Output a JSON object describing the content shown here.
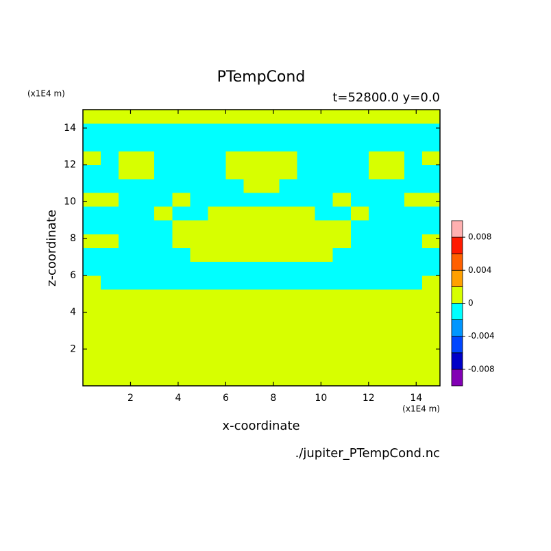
{
  "chart_data": {
    "type": "contour",
    "title": "PTempCond",
    "subtitle": "t=52800.0 y=0.0",
    "x_label": "x-coordinate",
    "y_label": "z-coordinate",
    "x_unit": "(x1E4 m)",
    "y_unit": "(x1E4 m)",
    "source": "./jupiter_PTempCond.nc",
    "xlim": [
      0,
      15
    ],
    "ylim": [
      0,
      15
    ],
    "xticks": [
      2,
      4,
      6,
      8,
      10,
      12,
      14
    ],
    "yticks": [
      2,
      4,
      6,
      8,
      10,
      12,
      14
    ],
    "levels": [
      -0.01,
      -0.008,
      -0.006,
      -0.004,
      -0.002,
      0,
      0.002,
      0.004,
      0.006,
      0.008,
      0.01
    ],
    "colors": [
      "#8200b4",
      "#0000c8",
      "#0046ff",
      "#0096ff",
      "#00ffff",
      "#d7ff00",
      "#ffa000",
      "#ff6000",
      "#ff1a00",
      "#ffb0b0"
    ],
    "colorbar_ticks": [
      -0.008,
      -0.004,
      0,
      0.004,
      0.008
    ],
    "z": [
      [
        0.001,
        0.001,
        0.001,
        0.001,
        0.001,
        0.001,
        0.001,
        0.001,
        0.001,
        0.001,
        0.001,
        0.001,
        0.001,
        0.001,
        0.001,
        0.001,
        0.001,
        0.001,
        0.001,
        0.001
      ],
      [
        0.001,
        0.001,
        0.001,
        0.001,
        0.001,
        0.001,
        0.001,
        0.001,
        0.001,
        0.001,
        0.001,
        0.001,
        0.001,
        0.001,
        0.001,
        0.001,
        0.001,
        0.001,
        0.001,
        0.001
      ],
      [
        0.001,
        0.001,
        0.001,
        0.001,
        0.001,
        0.001,
        0.001,
        0.001,
        0.001,
        0.001,
        0.001,
        0.001,
        0.001,
        0.001,
        0.001,
        0.001,
        0.001,
        0.001,
        0.001,
        0.001
      ],
      [
        0.001,
        0.001,
        0.001,
        0.001,
        0.001,
        0.001,
        0.001,
        0.001,
        0.001,
        0.001,
        0.001,
        0.001,
        0.001,
        0.001,
        0.001,
        0.001,
        0.001,
        0.001,
        0.001,
        0.001
      ],
      [
        0.001,
        0.001,
        0.001,
        0.001,
        0.001,
        0.001,
        0.001,
        0.001,
        0.001,
        0.001,
        0.001,
        0.001,
        0.001,
        0.001,
        0.001,
        0.001,
        0.001,
        0.001,
        0.001,
        0.001
      ],
      [
        0.001,
        0.001,
        0.001,
        0.001,
        0.001,
        0.001,
        0.001,
        0.001,
        0.001,
        0.001,
        0.001,
        0.001,
        0.001,
        0.001,
        0.001,
        0.001,
        0.001,
        0.001,
        0.001,
        0.001
      ],
      [
        0.001,
        0.001,
        0.001,
        0.001,
        0.001,
        0.001,
        0.001,
        0.001,
        0.001,
        0.001,
        0.001,
        0.001,
        0.001,
        0.001,
        0.001,
        0.001,
        0.001,
        0.001,
        0.001,
        0.001
      ],
      [
        0.001,
        -0.001,
        -0.001,
        -0.001,
        -0.001,
        -0.001,
        -0.001,
        -0.001,
        -0.001,
        -0.001,
        -0.001,
        -0.001,
        -0.001,
        -0.001,
        -0.001,
        -0.001,
        -0.001,
        -0.001,
        -0.001,
        0.001
      ],
      [
        -0.001,
        -0.001,
        -0.001,
        -0.001,
        -0.001,
        -0.001,
        -0.001,
        -0.001,
        -0.001,
        -0.001,
        -0.001,
        -0.001,
        -0.001,
        -0.001,
        -0.001,
        -0.001,
        -0.001,
        -0.001,
        -0.001,
        -0.001
      ],
      [
        -0.001,
        -0.001,
        -0.001,
        -0.001,
        -0.001,
        -0.001,
        0.001,
        0.001,
        0.001,
        0.001,
        0.001,
        0.001,
        0.001,
        0.001,
        -0.001,
        -0.001,
        -0.001,
        -0.001,
        -0.001,
        -0.001
      ],
      [
        0.001,
        0.001,
        -0.001,
        -0.001,
        -0.001,
        0.001,
        0.001,
        0.001,
        0.001,
        0.001,
        0.001,
        0.001,
        0.001,
        0.001,
        0.001,
        -0.001,
        -0.001,
        -0.001,
        -0.001,
        0.001
      ],
      [
        -0.001,
        -0.001,
        -0.001,
        -0.001,
        -0.001,
        0.001,
        0.001,
        0.001,
        0.001,
        0.001,
        0.001,
        0.001,
        0.001,
        0.001,
        0.001,
        -0.001,
        -0.001,
        -0.001,
        -0.001,
        -0.001
      ],
      [
        -0.001,
        -0.001,
        -0.001,
        -0.001,
        0.001,
        -0.001,
        -0.001,
        0.001,
        0.001,
        0.001,
        0.001,
        0.001,
        0.001,
        -0.001,
        -0.001,
        0.001,
        -0.001,
        -0.001,
        -0.001,
        -0.001
      ],
      [
        0.001,
        0.001,
        -0.001,
        -0.001,
        -0.001,
        0.001,
        -0.001,
        -0.001,
        -0.001,
        -0.001,
        -0.001,
        -0.001,
        -0.001,
        -0.001,
        0.001,
        -0.001,
        -0.001,
        -0.001,
        0.001,
        0.001
      ],
      [
        -0.001,
        -0.001,
        -0.001,
        -0.001,
        -0.001,
        -0.001,
        -0.001,
        -0.001,
        -0.001,
        0.001,
        0.001,
        -0.001,
        -0.001,
        -0.001,
        -0.001,
        -0.001,
        -0.001,
        -0.001,
        -0.001,
        -0.001
      ],
      [
        -0.001,
        -0.001,
        0.001,
        0.001,
        -0.001,
        -0.001,
        -0.001,
        -0.001,
        0.001,
        0.001,
        0.001,
        0.001,
        -0.001,
        -0.001,
        -0.001,
        -0.001,
        0.001,
        0.001,
        -0.001,
        -0.001
      ],
      [
        0.001,
        -0.001,
        0.001,
        0.001,
        -0.001,
        -0.001,
        -0.001,
        -0.001,
        0.001,
        0.001,
        0.001,
        0.001,
        -0.001,
        -0.001,
        -0.001,
        -0.001,
        0.001,
        0.001,
        -0.001,
        0.001
      ],
      [
        -0.001,
        -0.001,
        -0.001,
        -0.001,
        -0.001,
        -0.001,
        -0.001,
        -0.001,
        -0.001,
        -0.001,
        -0.001,
        -0.001,
        -0.001,
        -0.001,
        -0.001,
        -0.001,
        -0.001,
        -0.001,
        -0.001,
        -0.001
      ],
      [
        -0.001,
        -0.001,
        -0.001,
        -0.001,
        -0.001,
        -0.001,
        -0.001,
        -0.001,
        -0.001,
        -0.001,
        -0.001,
        -0.001,
        -0.001,
        -0.001,
        -0.001,
        -0.001,
        -0.001,
        -0.001,
        -0.001,
        -0.001
      ],
      [
        0.001,
        0.001,
        0.001,
        0.001,
        0.001,
        0.001,
        0.001,
        0.001,
        0.001,
        0.001,
        0.001,
        0.001,
        0.001,
        0.001,
        0.001,
        0.001,
        0.001,
        0.001,
        0.001,
        0.001
      ]
    ]
  }
}
